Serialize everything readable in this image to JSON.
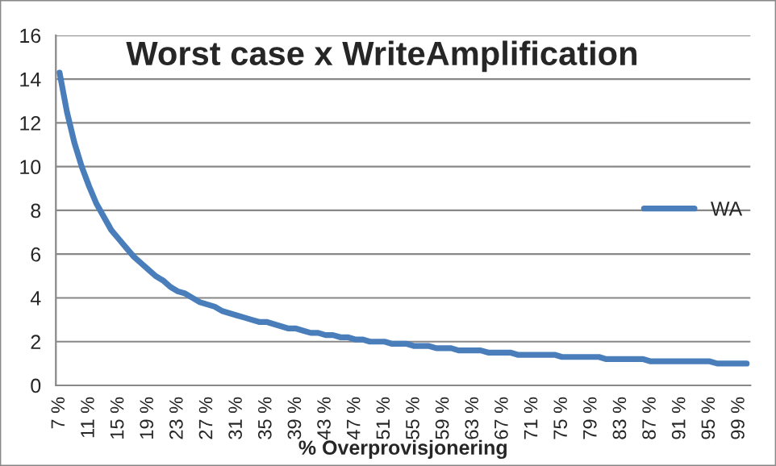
{
  "chart_data": {
    "type": "line",
    "title": "Worst case x WriteAmplification",
    "xlabel": "% Overprovisjonering",
    "categories": [
      "7 %",
      null,
      null,
      null,
      "11 %",
      null,
      null,
      null,
      "15 %",
      null,
      null,
      null,
      "19 %",
      null,
      null,
      null,
      "23 %",
      null,
      null,
      null,
      "27 %",
      null,
      null,
      null,
      "31 %",
      null,
      null,
      null,
      "35 %",
      null,
      null,
      null,
      "39 %",
      null,
      null,
      null,
      "43 %",
      null,
      null,
      null,
      "47 %",
      null,
      null,
      null,
      "51 %",
      null,
      null,
      null,
      "55 %",
      null,
      null,
      null,
      "59 %",
      null,
      null,
      null,
      "63 %",
      null,
      null,
      null,
      "67 %",
      null,
      null,
      null,
      "71 %",
      null,
      null,
      null,
      "75 %",
      null,
      null,
      null,
      "79 %",
      null,
      null,
      null,
      "83 %",
      null,
      null,
      null,
      "87 %",
      null,
      null,
      null,
      "91 %",
      null,
      null,
      null,
      "95 %",
      null,
      null,
      null,
      "99 %",
      null
    ],
    "series": [
      {
        "name": "WA",
        "color": "#4a7ebb",
        "values": [
          14.3,
          12.5,
          11.1,
          10.0,
          9.1,
          8.3,
          7.7,
          7.1,
          6.7,
          6.3,
          5.9,
          5.6,
          5.3,
          5.0,
          4.8,
          4.5,
          4.3,
          4.2,
          4.0,
          3.8,
          3.7,
          3.6,
          3.4,
          3.3,
          3.2,
          3.1,
          3.0,
          2.9,
          2.9,
          2.8,
          2.7,
          2.6,
          2.6,
          2.5,
          2.4,
          2.4,
          2.3,
          2.3,
          2.2,
          2.2,
          2.1,
          2.1,
          2.0,
          2.0,
          2.0,
          1.9,
          1.9,
          1.9,
          1.8,
          1.8,
          1.8,
          1.7,
          1.7,
          1.7,
          1.6,
          1.6,
          1.6,
          1.6,
          1.5,
          1.5,
          1.5,
          1.5,
          1.4,
          1.4,
          1.4,
          1.4,
          1.4,
          1.4,
          1.3,
          1.3,
          1.3,
          1.3,
          1.3,
          1.3,
          1.2,
          1.2,
          1.2,
          1.2,
          1.2,
          1.2,
          1.1,
          1.1,
          1.1,
          1.1,
          1.1,
          1.1,
          1.1,
          1.1,
          1.1,
          1.0,
          1.0,
          1.0,
          1.0,
          1.0
        ]
      }
    ],
    "ylim": [
      0,
      16
    ],
    "yticks": [
      0,
      2,
      4,
      6,
      8,
      10,
      12,
      14,
      16
    ],
    "grid": "y",
    "legend": "right",
    "marker": "none",
    "line_style": "solid"
  }
}
